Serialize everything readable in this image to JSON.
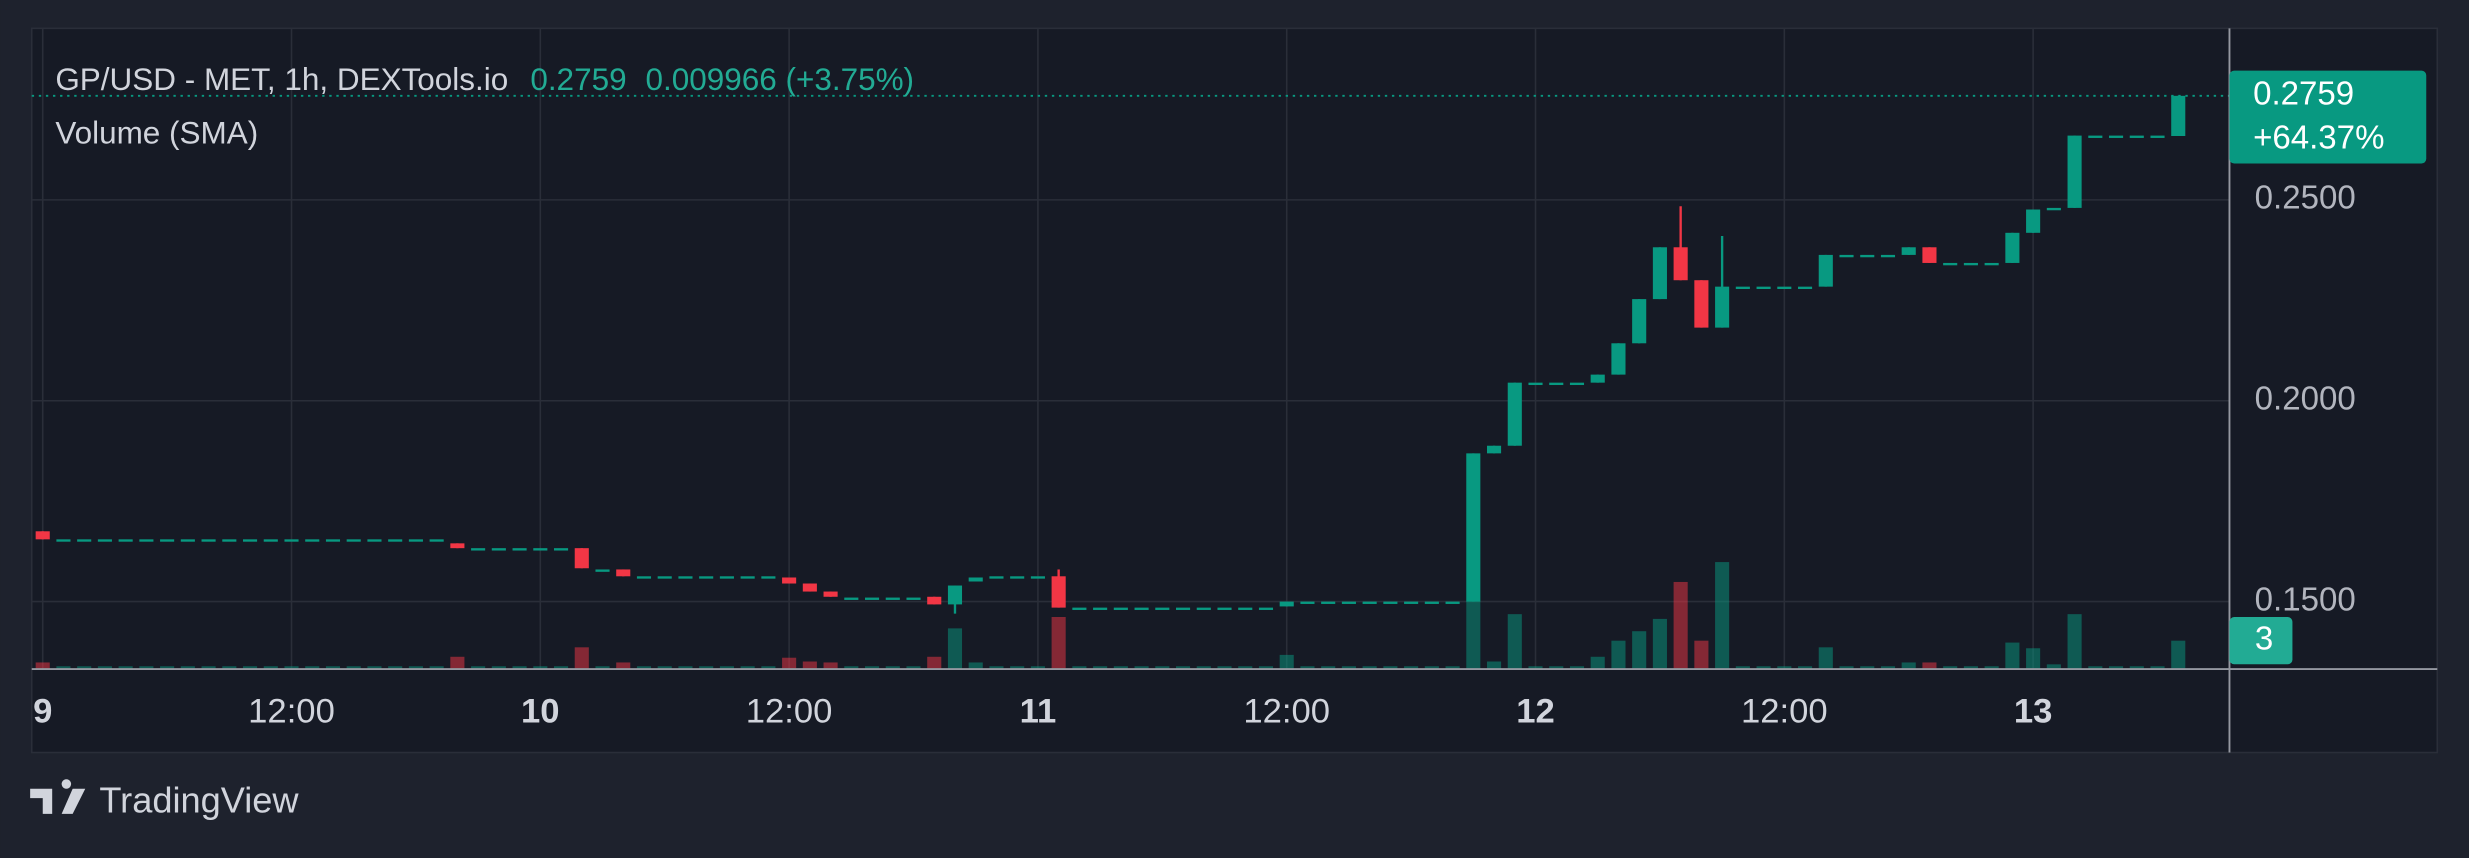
{
  "chart_data": {
    "type": "candlestick",
    "symbol": "GP/USD - MET, 1h, DEXTools.io",
    "last": 0.2759,
    "change": "0.009966 (+3.75%)",
    "volume_title": "Volume (SMA)",
    "price_change_tag": "+64.37%",
    "brand": "TradingView",
    "up_color": "#089981",
    "down_color": "#f23645",
    "grid": true,
    "xlim": [
      -0.53,
      105.47
    ],
    "xticks": [
      {
        "value": 0,
        "label": "9"
      },
      {
        "value": 12,
        "label": "12:00"
      },
      {
        "value": 24,
        "label": "10"
      },
      {
        "value": 36,
        "label": "12:00"
      },
      {
        "value": 48,
        "label": "11"
      },
      {
        "value": 60,
        "label": "12:00"
      },
      {
        "value": 72,
        "label": "12"
      },
      {
        "value": 84,
        "label": "12:00"
      },
      {
        "value": 96,
        "label": "13"
      }
    ],
    "ylim": [
      0.1332,
      0.2927
    ],
    "yticks": [
      {
        "value": 0.15,
        "label": "0.1500"
      },
      {
        "value": 0.2,
        "label": "0.2000"
      },
      {
        "value": 0.25,
        "label": "0.2500"
      }
    ],
    "open": [
      0.1675,
      0.1655,
      0.1655,
      0.1655,
      0.1655,
      0.1655,
      0.1655,
      0.1655,
      0.1655,
      0.1655,
      0.1655,
      0.1655,
      0.1655,
      0.1655,
      0.1655,
      0.1655,
      0.1655,
      0.1655,
      0.1655,
      0.1655,
      0.1645,
      0.1633,
      0.1633,
      0.1633,
      0.1633,
      0.1633,
      0.1633,
      0.158,
      0.158,
      0.1563,
      0.1563,
      0.1563,
      0.1563,
      0.1563,
      0.1563,
      0.1563,
      0.156,
      0.1545,
      0.1525,
      0.151,
      0.151,
      0.151,
      0.151,
      0.1512,
      0.1493,
      0.155,
      0.1563,
      0.1563,
      0.1563,
      0.1563,
      0.1485,
      0.1485,
      0.1485,
      0.1485,
      0.1485,
      0.1485,
      0.1485,
      0.1485,
      0.1485,
      0.1485,
      0.1488,
      0.15,
      0.15,
      0.15,
      0.15,
      0.15,
      0.15,
      0.15,
      0.15,
      0.15,
      0.1869,
      0.1888,
      0.2045,
      0.2045,
      0.2045,
      0.2045,
      0.2065,
      0.2143,
      0.2253,
      0.2382,
      0.23,
      0.2182,
      0.2284,
      0.2284,
      0.2284,
      0.2284,
      0.2284,
      0.2363,
      0.2363,
      0.2363,
      0.2363,
      0.2382,
      0.2343,
      0.2343,
      0.2343,
      0.2343,
      0.2418,
      0.248,
      0.248,
      0.266,
      0.266,
      0.266,
      0.266,
      0.2659
    ],
    "high": [
      0.1675,
      0.1655,
      0.1655,
      0.1655,
      0.1655,
      0.1655,
      0.1655,
      0.1655,
      0.1655,
      0.1655,
      0.1655,
      0.1655,
      0.1655,
      0.1655,
      0.1655,
      0.1655,
      0.1655,
      0.1655,
      0.1655,
      0.1655,
      0.1645,
      0.1633,
      0.1633,
      0.1633,
      0.1633,
      0.1633,
      0.1633,
      0.158,
      0.158,
      0.1563,
      0.1563,
      0.1563,
      0.1563,
      0.1563,
      0.1563,
      0.1563,
      0.156,
      0.1545,
      0.1525,
      0.151,
      0.151,
      0.151,
      0.151,
      0.1512,
      0.154,
      0.156,
      0.1563,
      0.1563,
      0.1563,
      0.158,
      0.1485,
      0.1485,
      0.1485,
      0.1485,
      0.1485,
      0.1485,
      0.1485,
      0.1485,
      0.1485,
      0.1485,
      0.15,
      0.15,
      0.15,
      0.15,
      0.15,
      0.15,
      0.15,
      0.15,
      0.15,
      0.1869,
      0.1888,
      0.2045,
      0.2045,
      0.2045,
      0.2045,
      0.2065,
      0.2143,
      0.2253,
      0.2382,
      0.2484,
      0.23,
      0.241,
      0.2284,
      0.2284,
      0.2284,
      0.2284,
      0.2363,
      0.2363,
      0.2363,
      0.2363,
      0.2382,
      0.2382,
      0.2343,
      0.2343,
      0.2343,
      0.2418,
      0.2476,
      0.248,
      0.266,
      0.266,
      0.266,
      0.266,
      0.266,
      0.2759
    ],
    "low": [
      0.1655,
      0.1655,
      0.1655,
      0.1655,
      0.1655,
      0.1655,
      0.1655,
      0.1655,
      0.1655,
      0.1655,
      0.1655,
      0.1655,
      0.1655,
      0.1655,
      0.1655,
      0.1655,
      0.1655,
      0.1655,
      0.1655,
      0.1655,
      0.1633,
      0.1633,
      0.1633,
      0.1633,
      0.1633,
      0.1633,
      0.1583,
      0.158,
      0.1563,
      0.1563,
      0.1563,
      0.1563,
      0.1563,
      0.1563,
      0.1563,
      0.1563,
      0.1545,
      0.1525,
      0.1512,
      0.151,
      0.151,
      0.151,
      0.151,
      0.1493,
      0.147,
      0.155,
      0.1563,
      0.1563,
      0.1563,
      0.1485,
      0.1485,
      0.1485,
      0.1485,
      0.1485,
      0.1485,
      0.1485,
      0.1485,
      0.1485,
      0.1485,
      0.1485,
      0.1488,
      0.15,
      0.15,
      0.15,
      0.15,
      0.15,
      0.15,
      0.15,
      0.15,
      0.15,
      0.1869,
      0.1888,
      0.2045,
      0.2045,
      0.2045,
      0.2045,
      0.2065,
      0.2143,
      0.2253,
      0.23,
      0.2182,
      0.2182,
      0.2284,
      0.2284,
      0.2284,
      0.2284,
      0.2284,
      0.2363,
      0.2363,
      0.2363,
      0.2363,
      0.2343,
      0.2343,
      0.2343,
      0.2343,
      0.2343,
      0.2418,
      0.248,
      0.248,
      0.266,
      0.266,
      0.266,
      0.266,
      0.2659
    ],
    "close": [
      0.1655,
      0.1655,
      0.1655,
      0.1655,
      0.1655,
      0.1655,
      0.1655,
      0.1655,
      0.1655,
      0.1655,
      0.1655,
      0.1655,
      0.1655,
      0.1655,
      0.1655,
      0.1655,
      0.1655,
      0.1655,
      0.1655,
      0.1655,
      0.1633,
      0.1633,
      0.1633,
      0.1633,
      0.1633,
      0.1633,
      0.1583,
      0.158,
      0.1563,
      0.1563,
      0.1563,
      0.1563,
      0.1563,
      0.1563,
      0.1563,
      0.1563,
      0.1545,
      0.1525,
      0.1512,
      0.151,
      0.151,
      0.151,
      0.151,
      0.1493,
      0.154,
      0.156,
      0.1563,
      0.1563,
      0.1563,
      0.1485,
      0.1485,
      0.1485,
      0.1485,
      0.1485,
      0.1485,
      0.1485,
      0.1485,
      0.1485,
      0.1485,
      0.1485,
      0.15,
      0.15,
      0.15,
      0.15,
      0.15,
      0.15,
      0.15,
      0.15,
      0.15,
      0.1869,
      0.1888,
      0.2045,
      0.2045,
      0.2045,
      0.2045,
      0.2065,
      0.2143,
      0.2253,
      0.2382,
      0.23,
      0.2182,
      0.2284,
      0.2284,
      0.2284,
      0.2284,
      0.2284,
      0.2363,
      0.2363,
      0.2363,
      0.2363,
      0.2382,
      0.2343,
      0.2343,
      0.2343,
      0.2343,
      0.2418,
      0.2476,
      0.248,
      0.266,
      0.266,
      0.266,
      0.266,
      0.266,
      0.2759
    ],
    "volume": [
      0.7,
      0.3,
      0.3,
      0.3,
      0.3,
      0.3,
      0.3,
      0.3,
      0.3,
      0.3,
      0.3,
      0.3,
      0.3,
      0.3,
      0.3,
      0.3,
      0.3,
      0.3,
      0.3,
      0.3,
      1.3,
      0.3,
      0.3,
      0.3,
      0.3,
      0.3,
      2.3,
      0.3,
      0.7,
      0.3,
      0.3,
      0.3,
      0.3,
      0.3,
      0.3,
      0.3,
      1.2,
      0.8,
      0.7,
      0.3,
      0.3,
      0.3,
      0.3,
      1.3,
      4.3,
      0.7,
      0.3,
      0.3,
      0.3,
      5.5,
      0.3,
      0.3,
      0.3,
      0.3,
      0.3,
      0.3,
      0.3,
      0.3,
      0.3,
      0.3,
      1.5,
      0.3,
      0.3,
      0.3,
      0.3,
      0.3,
      0.3,
      0.3,
      0.3,
      7.2,
      0.8,
      5.8,
      0.3,
      0.3,
      0.3,
      1.3,
      3,
      4,
      5.3,
      9.2,
      3,
      11.3,
      0.3,
      0.3,
      0.3,
      0.3,
      2.3,
      0.3,
      0.3,
      0.3,
      0.7,
      0.7,
      0.3,
      0.3,
      0.3,
      2.8,
      2.2,
      0.5,
      5.8,
      0.3,
      0.3,
      0.3,
      0.3,
      3
    ]
  }
}
